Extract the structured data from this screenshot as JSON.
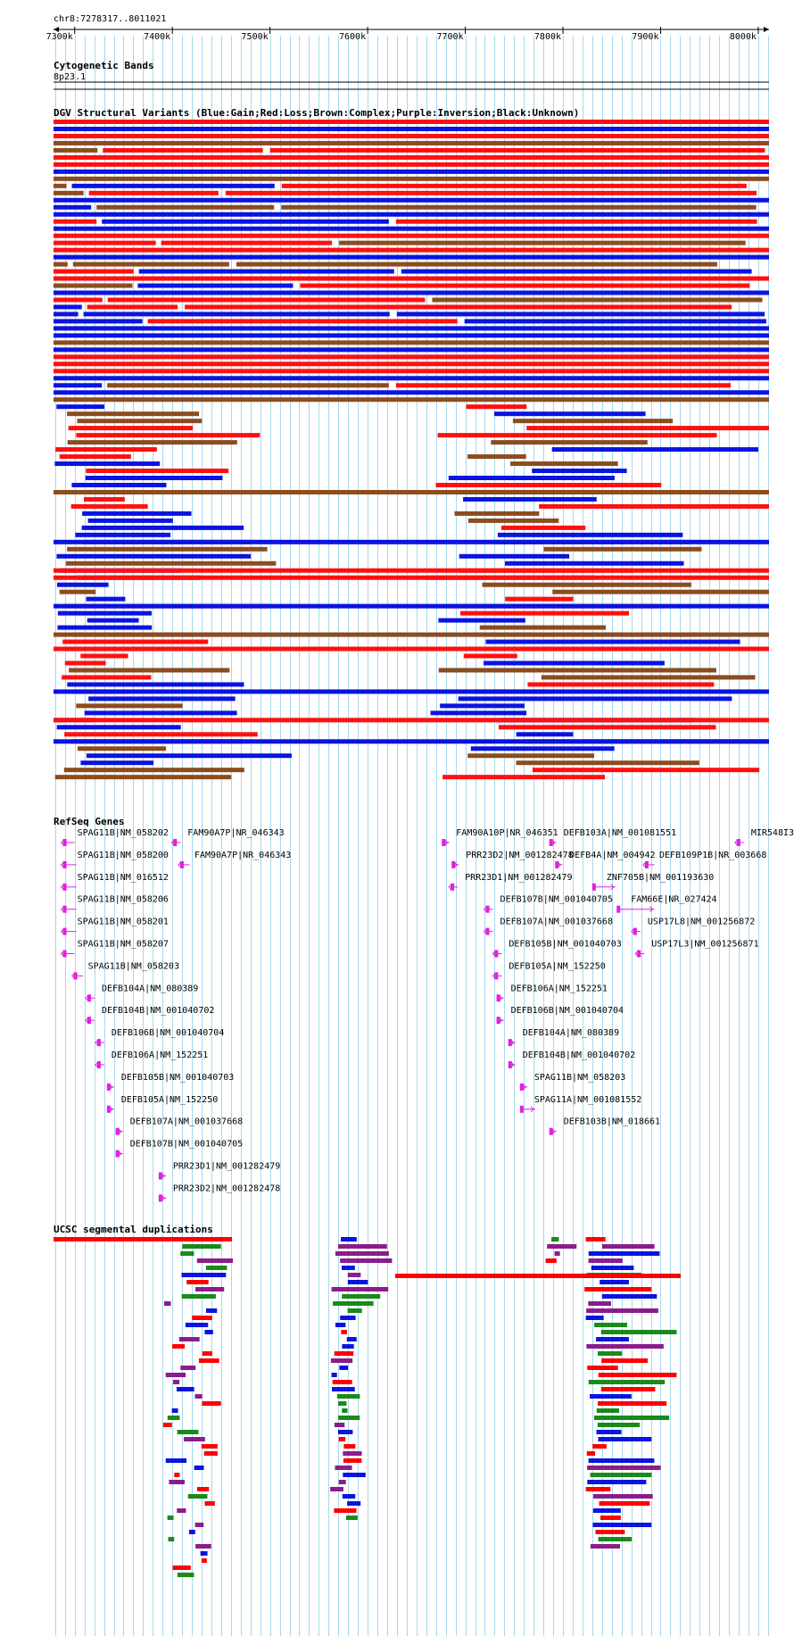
{
  "position": "chr8:7278317..8011021",
  "scale": {
    "start": 7278317,
    "end": 8011021,
    "ticks": [
      7300000,
      7400000,
      7500000,
      7600000,
      7700000,
      7800000,
      7900000,
      8000000
    ],
    "tick_labels": [
      "7300k",
      "7400k",
      "7500k",
      "7600k",
      "7700k",
      "7800k",
      "7900k",
      "8000k"
    ]
  },
  "colors": {
    "gain": "#0a14e0",
    "loss": "#ff1010",
    "complex": "#8b4c1e",
    "inversion": "#8b1c8b",
    "unknown": "#000000",
    "gene": "#e020e0",
    "segdup_red": "#ff0000",
    "segdup_green": "#1a8a1a",
    "segdup_blue": "#0a14e0",
    "segdup_purple": "#8b1c8b",
    "grid": "#a8d8ec"
  },
  "tracks": {
    "cytoband": {
      "title": "Cytogenetic Bands",
      "band": "8p23.1"
    },
    "dgv": {
      "title": "DGV Structural Variants (Blue:Gain;Red:Loss;Brown:Complex;Purple:Inversion;Black:Unknown)"
    },
    "refseq": {
      "title": "RefSeq Genes",
      "genes": [
        {
          "label": "SPAG11B|NM_058202",
          "start": 7288000,
          "end": 7296000,
          "strand": "-"
        },
        {
          "label": "FAM90A7P|NR_046343",
          "start": 7401000,
          "end": 7404000,
          "strand": "-"
        },
        {
          "label": "FAM90A10P|NR_046351",
          "start": 7676000,
          "end": 7680000,
          "strand": "+"
        },
        {
          "label": "DEFB103A|NM_001081551",
          "start": 7786000,
          "end": 7788000,
          "strand": "+"
        },
        {
          "label": "MIR548I3|N",
          "start": 7978000,
          "end": 7980000,
          "strand": "-"
        },
        {
          "label": "SPAG11B|NM_058200",
          "start": 7288000,
          "end": 7298000,
          "strand": "-"
        },
        {
          "label": "FAM90A7P|NR_046343",
          "start": 7408000,
          "end": 7414000,
          "strand": "-"
        },
        {
          "label": "PRR23D2|NM_001282478",
          "start": 7686000,
          "end": 7689000,
          "strand": "+"
        },
        {
          "label": "DEFB4A|NM_004942",
          "start": 7792000,
          "end": 7794000,
          "strand": "+"
        },
        {
          "label": "DEFB109P1B|NR_003668",
          "start": 7884000,
          "end": 7890000,
          "strand": "-"
        },
        {
          "label": "SPAG11B|NM_016512",
          "start": 7288000,
          "end": 7298000,
          "strand": "-"
        },
        {
          "label": "PRR23D1|NM_001282479",
          "start": 7685000,
          "end": 7688000,
          "strand": "-"
        },
        {
          "label": "ZNF705B|NM_001193630",
          "start": 7830000,
          "end": 7850000,
          "strand": "+"
        },
        {
          "label": "SPAG11B|NM_058206",
          "start": 7288000,
          "end": 7298000,
          "strand": "-"
        },
        {
          "label": "DEFB107B|NM_001040705",
          "start": 7721000,
          "end": 7724000,
          "strand": "-"
        },
        {
          "label": "FAM66E|NR_027424",
          "start": 7855000,
          "end": 7890000,
          "strand": "+"
        },
        {
          "label": "SPAG11B|NM_058201",
          "start": 7288000,
          "end": 7298000,
          "strand": "-"
        },
        {
          "label": "DEFB107A|NM_001037668",
          "start": 7721000,
          "end": 7724000,
          "strand": "-"
        },
        {
          "label": "USP17L8|NM_001256872",
          "start": 7872000,
          "end": 7875000,
          "strand": "-"
        },
        {
          "label": "SPAG11B|NM_058207",
          "start": 7288000,
          "end": 7296000,
          "strand": "-"
        },
        {
          "label": "DEFB105B|NM_001040703",
          "start": 7730000,
          "end": 7732000,
          "strand": "-"
        },
        {
          "label": "USP17L3|NM_001256871",
          "start": 7876000,
          "end": 7879000,
          "strand": "-"
        },
        {
          "label": "SPAG11B|NM_058203",
          "start": 7299000,
          "end": 7305000,
          "strand": "-"
        },
        {
          "label": "DEFB105A|NM_152250",
          "start": 7730000,
          "end": 7732000,
          "strand": "-"
        },
        {
          "label": "DEFB104A|NM_080389",
          "start": 7313000,
          "end": 7316000,
          "strand": "-"
        },
        {
          "label": "DEFB106A|NM_152251",
          "start": 7732000,
          "end": 7734000,
          "strand": "+"
        },
        {
          "label": "DEFB104B|NM_001040702",
          "start": 7313000,
          "end": 7316000,
          "strand": "-"
        },
        {
          "label": "DEFB106B|NM_001040704",
          "start": 7732000,
          "end": 7734000,
          "strand": "+"
        },
        {
          "label": "DEFB106B|NM_001040704",
          "start": 7323000,
          "end": 7326000,
          "strand": "-"
        },
        {
          "label": "DEFB104A|NM_080389",
          "start": 7744000,
          "end": 7746000,
          "strand": "+"
        },
        {
          "label": "DEFB106A|NM_152251",
          "start": 7323000,
          "end": 7326000,
          "strand": "-"
        },
        {
          "label": "DEFB104B|NM_001040702",
          "start": 7744000,
          "end": 7746000,
          "strand": "+"
        },
        {
          "label": "DEFB105B|NM_001040703",
          "start": 7333000,
          "end": 7335000,
          "strand": "+"
        },
        {
          "label": "SPAG11B|NM_058203",
          "start": 7756000,
          "end": 7760000,
          "strand": "+"
        },
        {
          "label": "DEFB105A|NM_152250",
          "start": 7333000,
          "end": 7335000,
          "strand": "+"
        },
        {
          "label": "SPAG11A|NM_001081552",
          "start": 7756000,
          "end": 7768000,
          "strand": "+"
        },
        {
          "label": "DEFB107A|NM_001037668",
          "start": 7342000,
          "end": 7345000,
          "strand": "+"
        },
        {
          "label": "DEFB103B|NM_018661",
          "start": 7786000,
          "end": 7788000,
          "strand": "+"
        },
        {
          "label": "DEFB107B|NM_001040705",
          "start": 7342000,
          "end": 7345000,
          "strand": "+"
        },
        {
          "label": "PRR23D1|NM_001282479",
          "start": 7386000,
          "end": 7390000,
          "strand": "+"
        },
        {
          "label": "PRR23D2|NM_001282478",
          "start": 7386000,
          "end": 7390000,
          "strand": "+"
        }
      ]
    },
    "segdups": {
      "title": "UCSC segmental duplications"
    }
  }
}
